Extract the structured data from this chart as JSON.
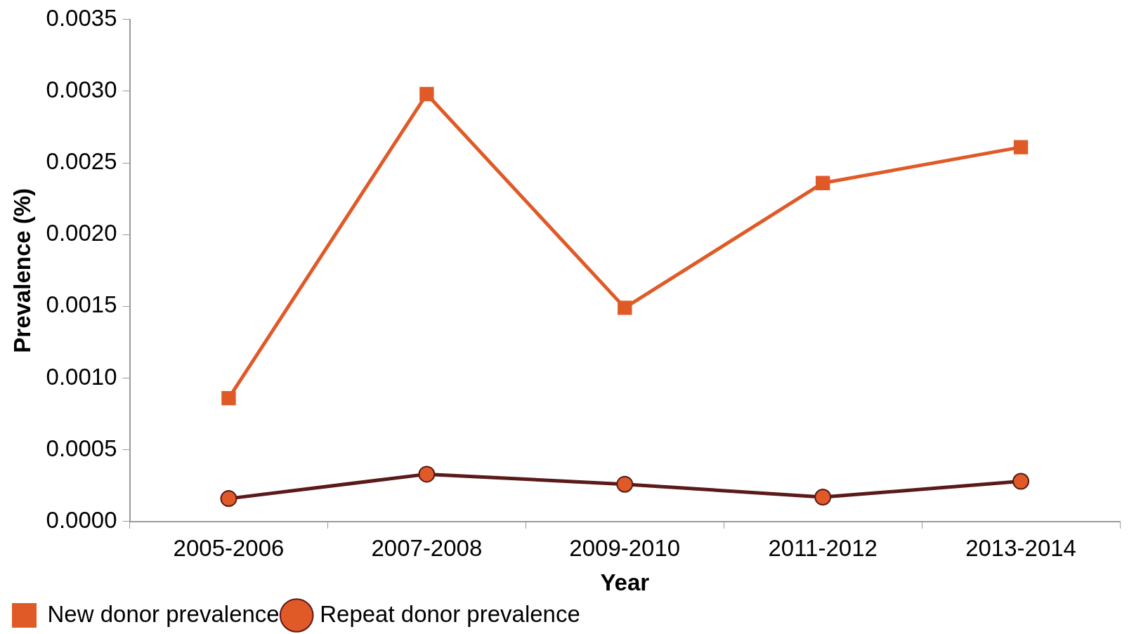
{
  "chart_data": {
    "type": "line",
    "xlabel": "Year",
    "ylabel": "Prevalence (%)",
    "categories": [
      "2005-2006",
      "2007-2008",
      "2009-2010",
      "2011-2012",
      "2013-2014"
    ],
    "series": [
      {
        "name": "New donor prevalence",
        "color": "#e05a28",
        "marker": "square",
        "values": [
          0.00086,
          0.00298,
          0.00149,
          0.00236,
          0.00261
        ]
      },
      {
        "name": "Repeat donor prevalence",
        "color": "#5a1a1a",
        "marker": "circle",
        "colors": [
          "#e05a28",
          "#e05a28",
          "#e05a28",
          "#e05a28",
          "#e05a28"
        ],
        "values": [
          0.00016,
          0.00033,
          0.00026,
          0.00017,
          0.00028
        ]
      }
    ],
    "ylim": [
      0,
      0.0035
    ],
    "yticks": [
      {
        "value": 0,
        "label": "0.0000"
      },
      {
        "value": 0.0005,
        "label": "0.0005"
      },
      {
        "value": 0.001,
        "label": "0.0010"
      },
      {
        "value": 0.0015,
        "label": "0.0015"
      },
      {
        "value": 0.002,
        "label": "0.0020"
      },
      {
        "value": 0.0025,
        "label": "0.0025"
      },
      {
        "value": 0.003,
        "label": "0.0030"
      },
      {
        "value": 0.0035,
        "label": "0.0035"
      }
    ],
    "grid": false,
    "legend": "bottom left"
  }
}
